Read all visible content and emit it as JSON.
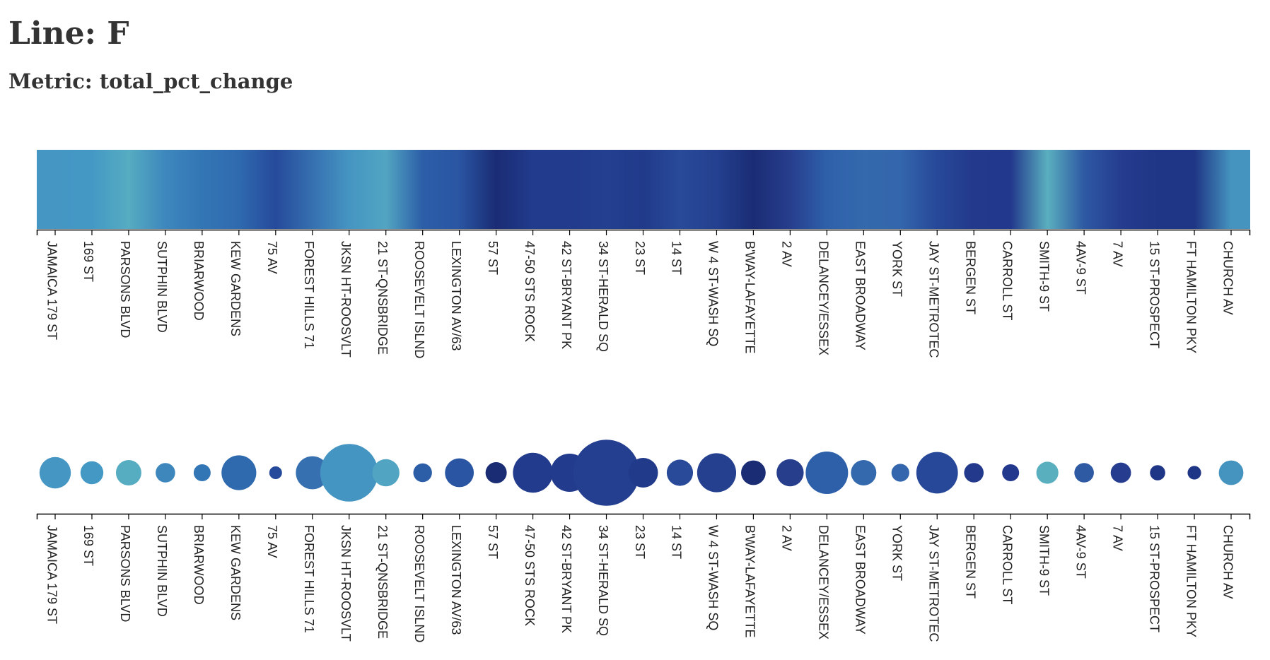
{
  "header": {
    "line_label": "Line: F",
    "metric_label": "Metric: total_pct_change"
  },
  "chart_data": {
    "type": "heatmap",
    "line": "F",
    "metric": "total_pct_change",
    "views": [
      "gradient-strip",
      "bubble-row"
    ],
    "stations": [
      "JAMAICA 179 ST",
      "169 ST",
      "PARSONS BLVD",
      "SUTPHIN BLVD",
      "BRIARWOOD",
      "KEW GARDENS",
      "75 AV",
      "FOREST HILLS 71",
      "JKSN HT-ROOSVLT",
      "21 ST-QNSBRIDGE",
      "ROOSEVELT ISLND",
      "LEXINGTON AV/63",
      "57 ST",
      "47-50 STS ROCK",
      "42 ST-BRYANT PK",
      "34 ST-HERALD SQ",
      "23 ST",
      "14 ST",
      "W 4 ST-WASH SQ",
      "B'WAY-LAFAYETTE",
      "2 AV",
      "DELANCEY/ESSEX",
      "EAST BROADWAY",
      "YORK ST",
      "JAY ST-METROTEC",
      "BERGEN ST",
      "CARROLL ST",
      "SMITH-9 ST",
      "4AV-9 ST",
      "7 AV",
      "15 ST-PROSPECT",
      "FT HAMILTON PKY",
      "CHURCH AV"
    ],
    "colors": [
      "#4596c3",
      "#4399c4",
      "#56acc1",
      "#3d87bd",
      "#3376b5",
      "#2f6aaf",
      "#264a9b",
      "#3670b0",
      "#4595c2",
      "#52a5c2",
      "#2c5ea8",
      "#2a55a2",
      "#1a2c74",
      "#223b8c",
      "#223b8c",
      "#243f90",
      "#213a8a",
      "#284a99",
      "#24408f",
      "#1a2c74",
      "#273e8d",
      "#2e60aa",
      "#3469ad",
      "#3366ac",
      "#274898",
      "#23398b",
      "#22388c",
      "#5aafbf",
      "#2e59a3",
      "#253c8f",
      "#1f3585",
      "#1f3585",
      "#4594bf"
    ],
    "sizes": [
      1.85,
      1.35,
      1.5,
      1.15,
      1.0,
      2.05,
      0.75,
      1.95,
      3.4,
      1.6,
      1.1,
      1.7,
      1.25,
      2.35,
      2.25,
      3.9,
      1.75,
      1.55,
      2.3,
      1.45,
      1.6,
      2.5,
      1.5,
      1.05,
      2.45,
      1.15,
      1.0,
      1.3,
      1.15,
      1.2,
      0.9,
      0.8,
      1.45
    ]
  }
}
